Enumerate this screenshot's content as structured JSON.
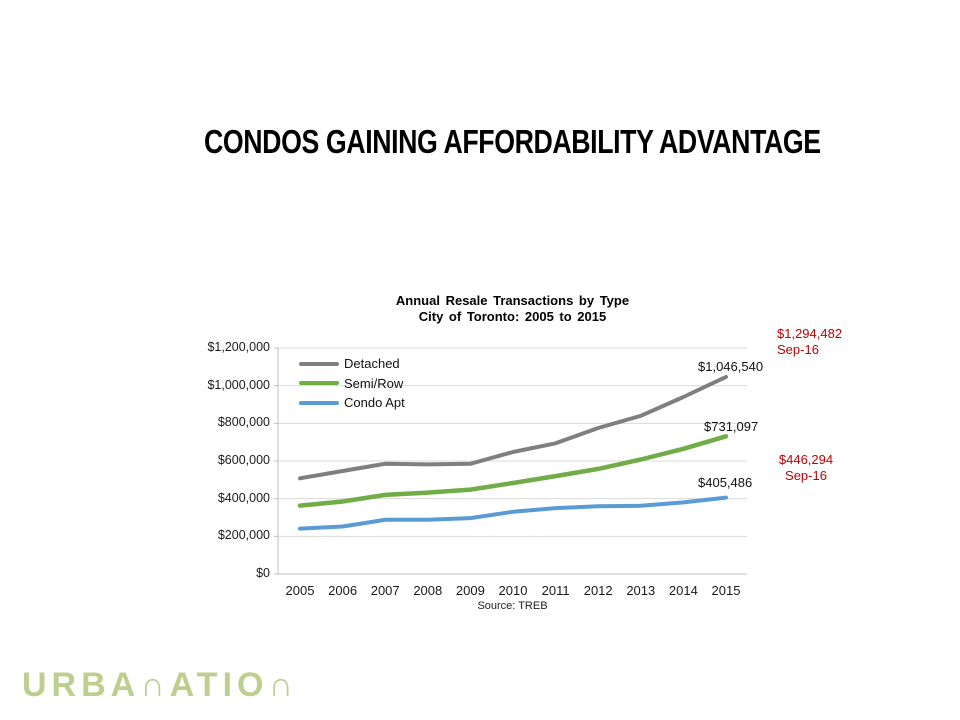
{
  "slide": {
    "title": "CONDOS GAINING AFFORDABILITY ADVANTAGE",
    "background": "#FFFFFF"
  },
  "chart_data": {
    "type": "line",
    "title": "Annual Resale Transactions by Type",
    "subtitle": "City of Toronto: 2005 to 2015",
    "categories": [
      "2005",
      "2006",
      "2007",
      "2008",
      "2009",
      "2010",
      "2011",
      "2012",
      "2013",
      "2014",
      "2015"
    ],
    "series": [
      {
        "name": "Detached",
        "color": "#7F7F7F",
        "values": [
          508000,
          547000,
          585000,
          582000,
          585000,
          648000,
          694000,
          775000,
          840000,
          940000,
          1046540
        ],
        "end_label": "$1,046,540"
      },
      {
        "name": "Semi/Row",
        "color": "#70AD47",
        "values": [
          363000,
          385000,
          420000,
          432000,
          448000,
          483000,
          520000,
          558000,
          608000,
          665000,
          731097
        ],
        "end_label": "$731,097"
      },
      {
        "name": "Condo Apt",
        "color": "#5B9BD5",
        "values": [
          241000,
          252000,
          288000,
          288000,
          297000,
          330000,
          350000,
          360000,
          362000,
          380000,
          405486
        ],
        "end_label": "$405,486"
      }
    ],
    "ylim": [
      0,
      1200000
    ],
    "y_ticks": [
      "$1,200,000",
      "$1,000,000",
      "$800,000",
      "$600,000",
      "$400,000",
      "$200,000",
      "$0"
    ],
    "grid": true,
    "gridline_color": "#D9D9D9",
    "axis_color": "#BFBFBF",
    "legend_position": "top-left-inside"
  },
  "annotations": [
    {
      "value": "$1,294,482",
      "date": "Sep-16",
      "color": "#C00000"
    },
    {
      "value": "$446,294",
      "date": "Sep-16",
      "color": "#C00000"
    }
  ],
  "source": "Source: TREB",
  "logo": {
    "text": "URBANATION",
    "display_text": "URBA∩ATIO∩",
    "color": "#BCCF8E"
  }
}
